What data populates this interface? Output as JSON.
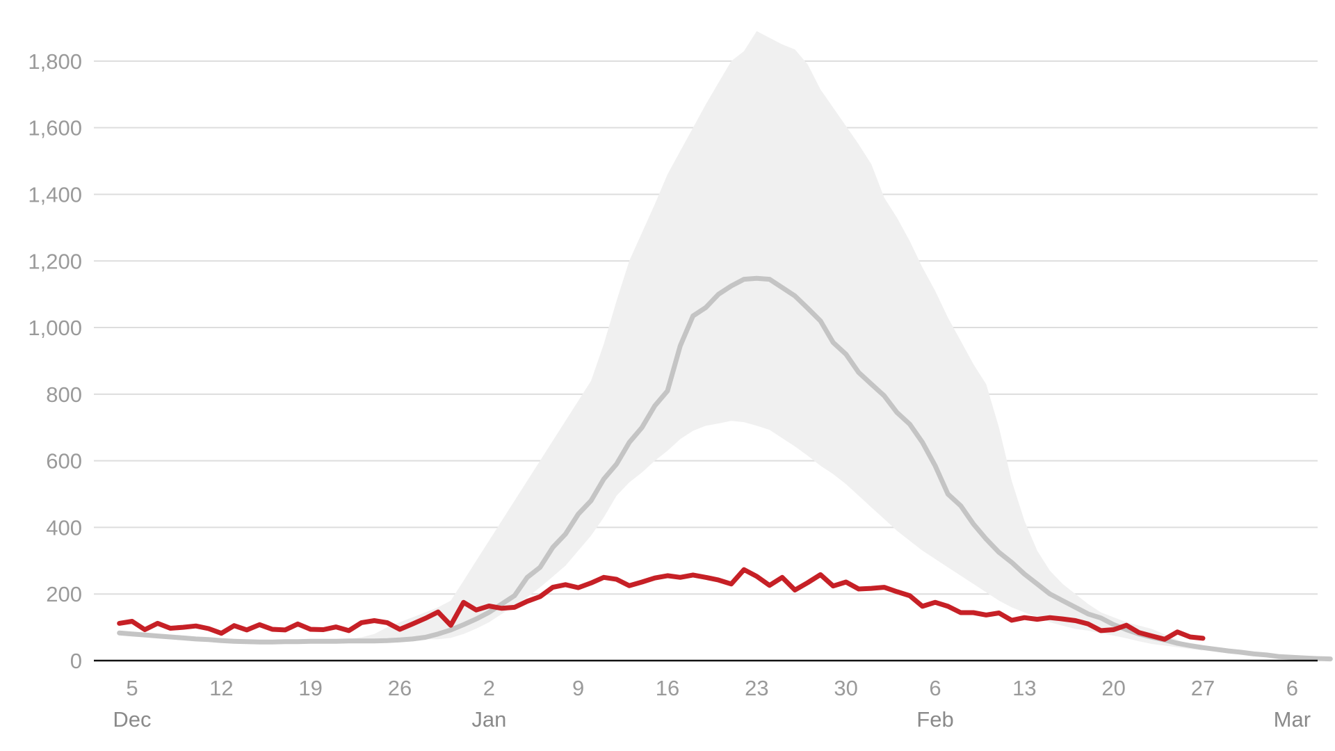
{
  "chart_data": {
    "type": "line",
    "title": "",
    "xlabel": "",
    "ylabel": "",
    "ylim": [
      0,
      1900
    ],
    "grid": true,
    "legend": "none",
    "x_axis": {
      "start_date": "2022-12-02",
      "end_date": "2023-03-08",
      "ticks": [
        {
          "date": "2022-12-05",
          "label": "5"
        },
        {
          "date": "2022-12-12",
          "label": "12"
        },
        {
          "date": "2022-12-19",
          "label": "19"
        },
        {
          "date": "2022-12-26",
          "label": "26"
        },
        {
          "date": "2023-01-02",
          "label": "2"
        },
        {
          "date": "2023-01-09",
          "label": "9"
        },
        {
          "date": "2023-01-16",
          "label": "16"
        },
        {
          "date": "2023-01-23",
          "label": "23"
        },
        {
          "date": "2023-01-30",
          "label": "30"
        },
        {
          "date": "2023-02-06",
          "label": "6"
        },
        {
          "date": "2023-02-13",
          "label": "13"
        },
        {
          "date": "2023-02-20",
          "label": "20"
        },
        {
          "date": "2023-02-27",
          "label": "27"
        },
        {
          "date": "2023-03-06",
          "label": "6"
        }
      ],
      "months": [
        {
          "date": "2022-12-05",
          "label": "Dec"
        },
        {
          "date": "2023-01-02",
          "label": "Jan"
        },
        {
          "date": "2023-02-06",
          "label": "Feb"
        },
        {
          "date": "2023-03-06",
          "label": "Mar"
        }
      ]
    },
    "y_axis": {
      "ticks": [
        {
          "value": 0,
          "label": "0"
        },
        {
          "value": 200,
          "label": "200"
        },
        {
          "value": 400,
          "label": "400"
        },
        {
          "value": 600,
          "label": "600"
        },
        {
          "value": 800,
          "label": "800"
        },
        {
          "value": 1000,
          "label": "1,000"
        },
        {
          "value": 1200,
          "label": "1,200"
        },
        {
          "value": 1400,
          "label": "1,400"
        },
        {
          "value": 1600,
          "label": "1,600"
        },
        {
          "value": 1800,
          "label": "1,800"
        }
      ]
    },
    "colors": {
      "actual": "#c62026",
      "projection": "#c4c4c4",
      "band": "#f0f0f0",
      "grid": "#dddddd",
      "axis": "#111111"
    },
    "series": [
      {
        "key": "actual",
        "start_date": "2022-12-04",
        "values": [
          112,
          118,
          93,
          112,
          97,
          100,
          104,
          96,
          82,
          105,
          92,
          108,
          94,
          92,
          110,
          94,
          93,
          101,
          90,
          114,
          120,
          114,
          94,
          110,
          127,
          146,
          106,
          175,
          152,
          164,
          157,
          160,
          178,
          192,
          220,
          228,
          219,
          233,
          250,
          244,
          225,
          236,
          248,
          255,
          250,
          257,
          250,
          242,
          230,
          273,
          253,
          226,
          250,
          212,
          234,
          258,
          224,
          236,
          215,
          217,
          220,
          207,
          195,
          163,
          175,
          163,
          144,
          144,
          137,
          143,
          121,
          129,
          124,
          129,
          125,
          120,
          110,
          90,
          93,
          106,
          84,
          74,
          64,
          86,
          71,
          67
        ]
      },
      {
        "key": "projection",
        "start_date": "2022-12-04",
        "values": [
          83,
          80,
          77,
          74,
          71,
          68,
          65,
          63,
          60,
          58,
          57,
          56,
          56,
          57,
          57,
          58,
          58,
          58,
          59,
          59,
          59,
          60,
          62,
          65,
          70,
          80,
          92,
          108,
          125,
          145,
          170,
          195,
          250,
          280,
          340,
          380,
          440,
          480,
          545,
          590,
          655,
          700,
          765,
          810,
          945,
          1035,
          1060,
          1100,
          1125,
          1145,
          1148,
          1145,
          1120,
          1095,
          1058,
          1020,
          955,
          920,
          865,
          830,
          795,
          745,
          710,
          655,
          585,
          500,
          465,
          410,
          365,
          325,
          295,
          260,
          230,
          200,
          180,
          160,
          140,
          128,
          108,
          93,
          80,
          70,
          62,
          52,
          45,
          39,
          34,
          29,
          25,
          20,
          17,
          12,
          10,
          8,
          6,
          5
        ]
      },
      {
        "key": "band_upper",
        "start_date": "2022-12-04",
        "values": [
          85,
          82,
          79,
          76,
          73,
          70,
          67,
          65,
          62,
          60,
          59,
          58,
          58,
          59,
          59,
          60,
          61,
          63,
          65,
          70,
          80,
          100,
          115,
          130,
          145,
          160,
          180,
          240,
          300,
          360,
          420,
          480,
          540,
          600,
          660,
          720,
          780,
          840,
          950,
          1080,
          1200,
          1285,
          1370,
          1460,
          1530,
          1600,
          1670,
          1735,
          1800,
          1830,
          1890,
          1870,
          1850,
          1835,
          1790,
          1715,
          1660,
          1605,
          1550,
          1490,
          1390,
          1330,
          1260,
          1180,
          1110,
          1030,
          960,
          890,
          830,
          700,
          540,
          420,
          330,
          270,
          230,
          200,
          170,
          145,
          130,
          115,
          105,
          95
        ]
      },
      {
        "key": "band_lower",
        "start_date": "2022-12-04",
        "values": [
          85,
          82,
          79,
          76,
          73,
          70,
          67,
          65,
          62,
          60,
          59,
          58,
          58,
          59,
          59,
          60,
          61,
          62,
          63,
          64,
          64,
          64,
          64,
          64,
          64,
          64,
          68,
          80,
          96,
          115,
          140,
          165,
          190,
          220,
          252,
          285,
          330,
          375,
          430,
          495,
          535,
          565,
          600,
          630,
          665,
          690,
          705,
          712,
          720,
          716,
          705,
          693,
          668,
          643,
          615,
          585,
          560,
          530,
          495,
          460,
          425,
          390,
          360,
          330,
          305,
          280,
          255,
          230,
          205,
          180,
          160,
          145,
          130,
          115,
          105,
          95,
          90,
          82,
          75,
          67,
          58,
          50,
          45,
          40,
          35,
          30
        ]
      }
    ]
  }
}
